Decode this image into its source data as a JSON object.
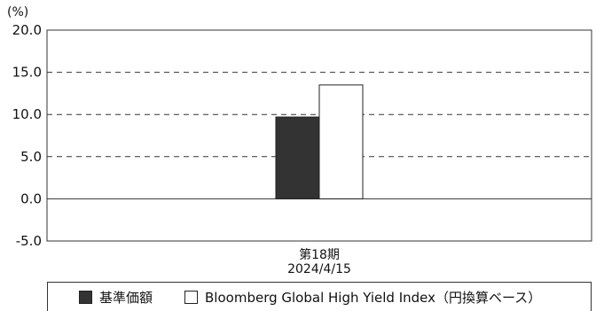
{
  "chart_data": {
    "type": "bar",
    "unit_label": "(%)",
    "categories": [
      [
        "第18期",
        "2024/4/15"
      ]
    ],
    "series": [
      {
        "name": "基準価額",
        "values": [
          9.7
        ],
        "color": "#333333"
      },
      {
        "name": "Bloomberg Global High Yield Index（円換算ベース）",
        "values": [
          13.5
        ],
        "color": "#ffffff"
      }
    ],
    "ylim": [
      -5.0,
      20.0
    ],
    "yticks": [
      "20.0",
      "15.0",
      "10.0",
      "5.0",
      "0.0",
      "-5.0"
    ],
    "grid": "dashed",
    "legend_position": "bottom"
  }
}
